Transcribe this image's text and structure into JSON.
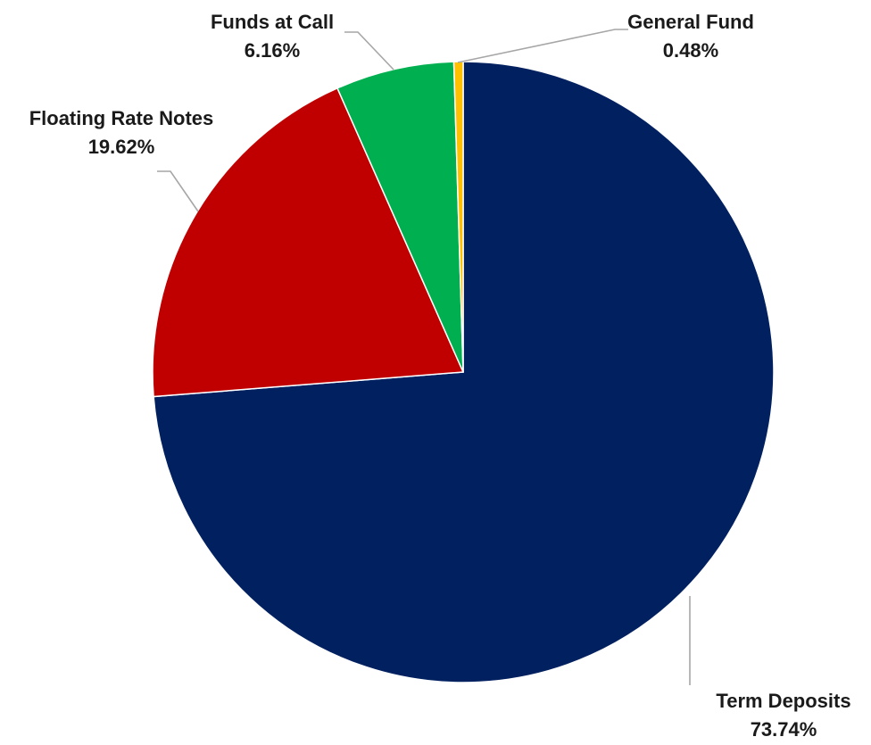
{
  "chart_data": {
    "type": "pie",
    "title": "",
    "start_angle_deg": 0,
    "direction": "clockwise",
    "slices": [
      {
        "label": "Term Deposits",
        "value": 73.74,
        "value_label": "73.74%",
        "color": "#002060"
      },
      {
        "label": "Floating Rate Notes",
        "value": 19.62,
        "value_label": "19.62%",
        "color": "#C00000"
      },
      {
        "label": "Funds at Call",
        "value": 6.16,
        "value_label": "6.16%",
        "color": "#00B050"
      },
      {
        "label": "General Fund",
        "value": 0.48,
        "value_label": "0.48%",
        "color": "#FFC000"
      }
    ],
    "legend": "none",
    "data_labels": "outside-with-leader-lines"
  }
}
